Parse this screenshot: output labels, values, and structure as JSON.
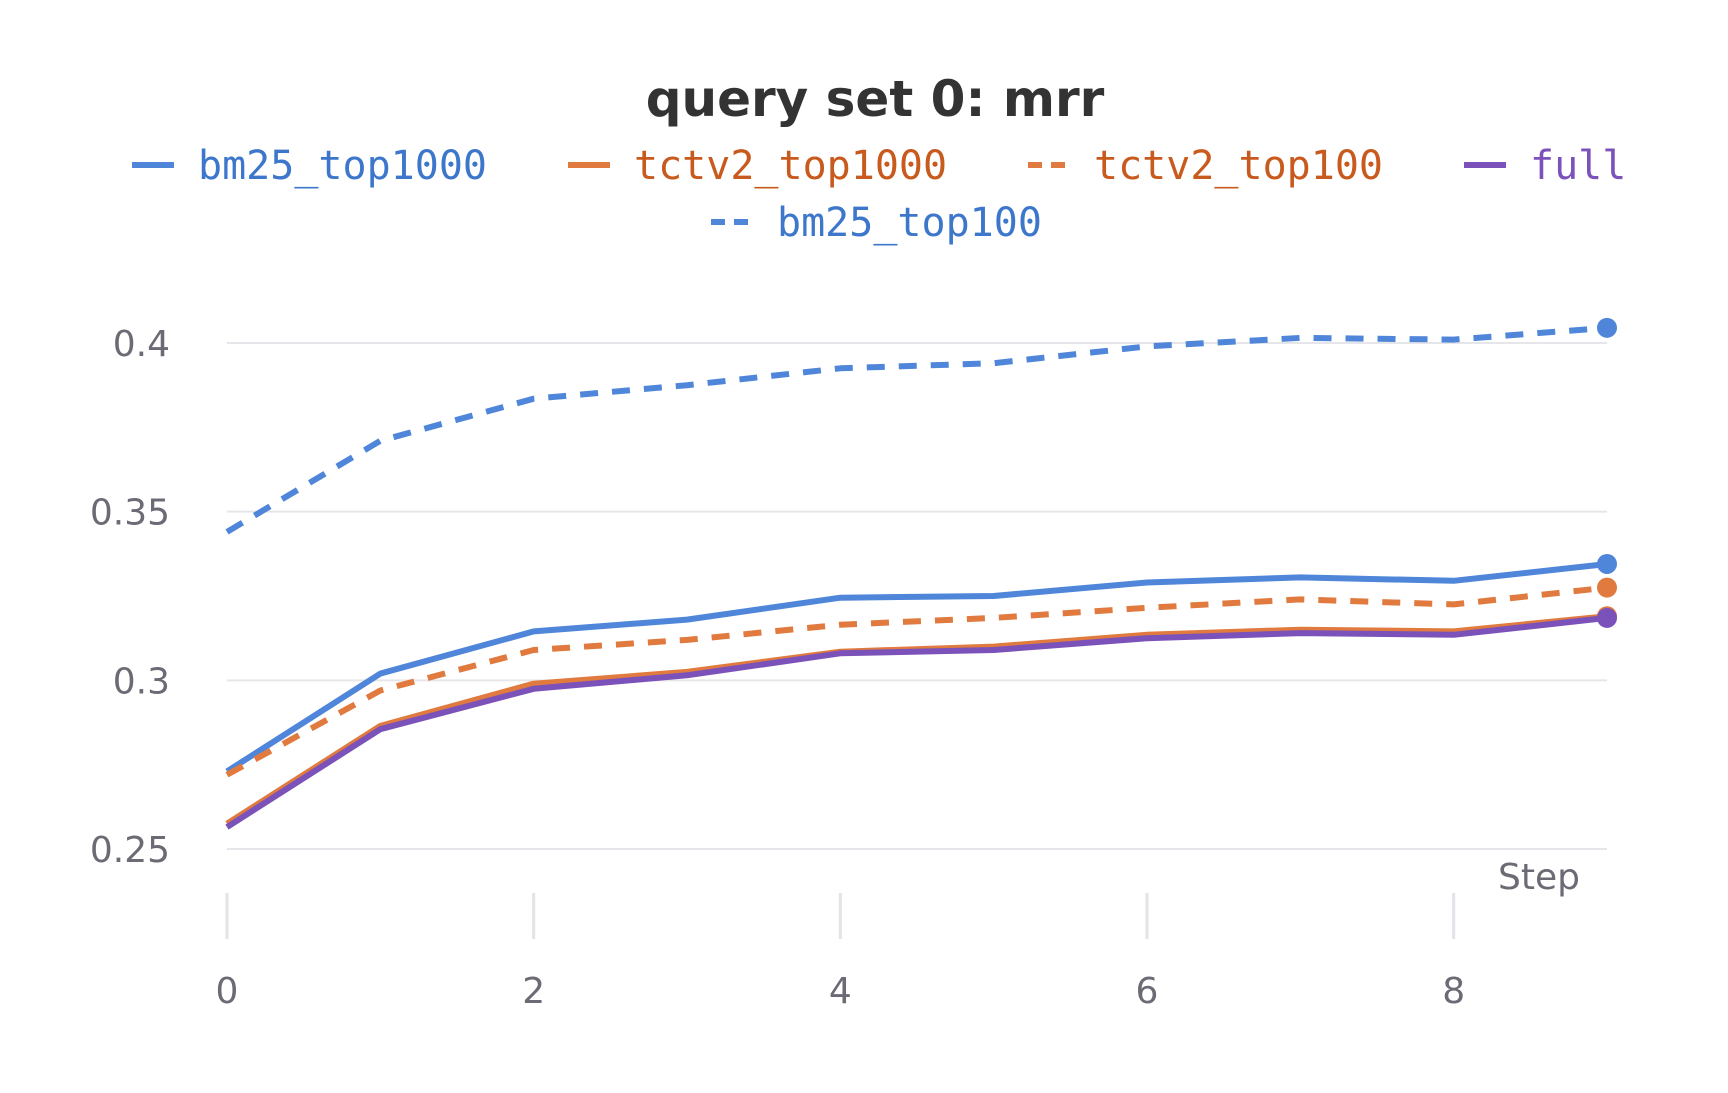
{
  "chart_data": {
    "type": "line",
    "title": "query set 0: mrr",
    "xlabel": "Step",
    "ylabel": "",
    "x": [
      0,
      1,
      2,
      3,
      4,
      5,
      6,
      7,
      8,
      9
    ],
    "xlim": [
      0,
      9
    ],
    "ylim": [
      0.25,
      0.41
    ],
    "x_ticks": [
      "0",
      "2",
      "4",
      "6",
      "8"
    ],
    "y_ticks": [
      "0.25",
      "0.3",
      "0.35",
      "0.4"
    ],
    "grid": "horizontal",
    "legend_position": "top",
    "series": [
      {
        "name": "bm25_top1000",
        "color": "#4f86d9",
        "dash": "solid",
        "values": [
          0.273,
          0.302,
          0.3145,
          0.318,
          0.3245,
          0.325,
          0.329,
          0.3305,
          0.3295,
          0.3345
        ]
      },
      {
        "name": "tctv2_top1000",
        "color": "#e07a3e",
        "dash": "solid",
        "values": [
          0.2575,
          0.2865,
          0.299,
          0.3025,
          0.3085,
          0.31,
          0.3135,
          0.315,
          0.3145,
          0.319
        ]
      },
      {
        "name": "tctv2_top100",
        "color": "#e07a3e",
        "dash": "dashed",
        "values": [
          0.272,
          0.297,
          0.309,
          0.312,
          0.3165,
          0.3185,
          0.3215,
          0.324,
          0.3225,
          0.3275
        ]
      },
      {
        "name": "full",
        "color": "#7b52b9",
        "dash": "solid",
        "values": [
          0.2565,
          0.2855,
          0.2975,
          0.3015,
          0.308,
          0.309,
          0.3125,
          0.314,
          0.3135,
          0.3185
        ]
      },
      {
        "name": "bm25_top100",
        "color": "#4f86d9",
        "dash": "dashed",
        "values": [
          0.344,
          0.371,
          0.3835,
          0.3875,
          0.3925,
          0.394,
          0.399,
          0.4015,
          0.401,
          0.4045
        ]
      }
    ]
  },
  "legend_text_colors": {
    "bm25_top1000": "#3d77cc",
    "tctv2_top1000": "#c85a1e",
    "tctv2_top100": "#c85a1e",
    "full": "#7b52b9",
    "bm25_top100": "#3d77cc"
  }
}
